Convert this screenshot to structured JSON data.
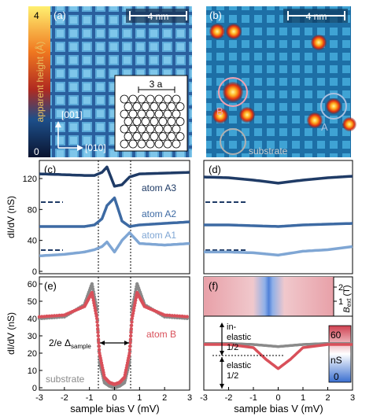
{
  "panel_a": {
    "label": "(a)",
    "scalebar": "4 nm",
    "colorbar_title": "apparent height (Å)",
    "colorbar_max": "4",
    "colorbar_min": "0",
    "dir_001": "[001]",
    "dir_010": "[010]",
    "inset_label": "3 a"
  },
  "panel_b": {
    "label": "(b)",
    "scalebar": "4 nm",
    "atom_B_label": "B",
    "atom_A_label": "A",
    "substrate_label": "substrate"
  },
  "panel_c": {
    "label": "(c)",
    "ylabel": "dI/dV (nS)",
    "yticks": [
      "120",
      "80",
      "40",
      "0"
    ],
    "curve_labels": [
      "atom A3",
      "atom A2",
      "atom A1"
    ]
  },
  "panel_d": {
    "label": "(d)"
  },
  "panel_e": {
    "label": "(e)",
    "ylabel": "dI/dV (nS)",
    "yticks": [
      "60",
      "50",
      "40",
      "30",
      "20",
      "10",
      "0"
    ],
    "gap_label": "2/e Δ",
    "gap_sub": "sample",
    "atom_label": "atom B",
    "substrate_label": "substrate"
  },
  "panel_f": {
    "label": "(f)",
    "bext_label": "B",
    "bext_sub": "ext",
    "bext_unit": "(T)",
    "bext_ticks": [
      "2",
      "1"
    ],
    "cbar_max": "60",
    "cbar_unit": "nS",
    "cbar_min": "0",
    "inelastic_label": "in-",
    "inelastic_label2": "elastic",
    "inelastic_frac": "1/2",
    "elastic_label": "elastic",
    "elastic_frac": "1/2"
  },
  "xaxis": {
    "xlabel_left": "sample bias V (mV)",
    "xlabel_right": "sample bias V (mV)",
    "xticks": [
      "-3",
      "-2",
      "-1",
      "0",
      "1",
      "2",
      "3"
    ]
  },
  "colors": {
    "curve_dark": "#1f3b66",
    "curve_mid": "#3d6aa3",
    "curve_light": "#7fa6d4",
    "atom_b": "#d9505a",
    "substrate": "#8a8a8a"
  },
  "chart_data": [
    {
      "type": "line",
      "panel": "c",
      "xlabel": "sample bias V (mV)",
      "ylabel": "dI/dV (nS)",
      "xlim": [
        -3,
        3
      ],
      "ylim": [
        0,
        140
      ],
      "x": [
        -3,
        -2,
        -1.2,
        -0.8,
        -0.5,
        -0.3,
        0,
        0.3,
        0.6,
        1,
        2,
        3
      ],
      "series": [
        {
          "name": "atom A3",
          "values": [
            126,
            125,
            124,
            124,
            128,
            135,
            110,
            112,
            122,
            126,
            127,
            128
          ]
        },
        {
          "name": "atom A2",
          "values": [
            58,
            58,
            58,
            60,
            68,
            85,
            95,
            65,
            58,
            60,
            62,
            64
          ]
        },
        {
          "name": "atom A1",
          "values": [
            20,
            22,
            25,
            28,
            32,
            38,
            25,
            40,
            50,
            36,
            34,
            36
          ]
        }
      ]
    },
    {
      "type": "line",
      "panel": "d",
      "xlabel": "sample bias V (mV)",
      "xlim": [
        -3,
        3
      ],
      "ylim": [
        0,
        140
      ],
      "x": [
        -3,
        -2,
        -1,
        0,
        1,
        2,
        3
      ],
      "series": [
        {
          "values": [
            122,
            121,
            118,
            114,
            118,
            121,
            123
          ]
        },
        {
          "values": [
            60,
            60,
            59,
            58,
            60,
            61,
            62
          ]
        },
        {
          "values": [
            25,
            25,
            24,
            21,
            26,
            28,
            32
          ]
        }
      ]
    },
    {
      "type": "scatter",
      "panel": "e",
      "xlabel": "sample bias V (mV)",
      "ylabel": "dI/dV (nS)",
      "xlim": [
        -3,
        3
      ],
      "ylim": [
        0,
        65
      ],
      "x": [
        -3,
        -2,
        -1.2,
        -0.9,
        -0.7,
        -0.6,
        -0.4,
        -0.2,
        0,
        0.2,
        0.4,
        0.6,
        0.7,
        0.9,
        1.2,
        2,
        3
      ],
      "series": [
        {
          "name": "atom B",
          "values": [
            41,
            42,
            47,
            55,
            40,
            20,
            6,
            3,
            2,
            3,
            6,
            20,
            40,
            55,
            47,
            42,
            41
          ]
        },
        {
          "name": "substrate",
          "values": [
            40,
            41,
            48,
            60,
            45,
            15,
            3,
            1,
            0,
            1,
            3,
            15,
            45,
            60,
            48,
            41,
            40
          ]
        }
      ]
    },
    {
      "type": "line",
      "panel": "f",
      "xlabel": "sample bias V (mV)",
      "ylabel": "dI/dV (nS)",
      "xlim": [
        -3,
        3
      ],
      "ylim": [
        0,
        60
      ],
      "x": [
        -3,
        -2,
        -1,
        -0.5,
        0,
        0.5,
        1,
        2,
        3
      ],
      "series": [
        {
          "values": [
            42,
            42,
            39,
            28,
            19,
            28,
            39,
            42,
            42
          ]
        },
        {
          "values": [
            43,
            43,
            42,
            41,
            40,
            41,
            42,
            43,
            43
          ]
        }
      ]
    }
  ]
}
